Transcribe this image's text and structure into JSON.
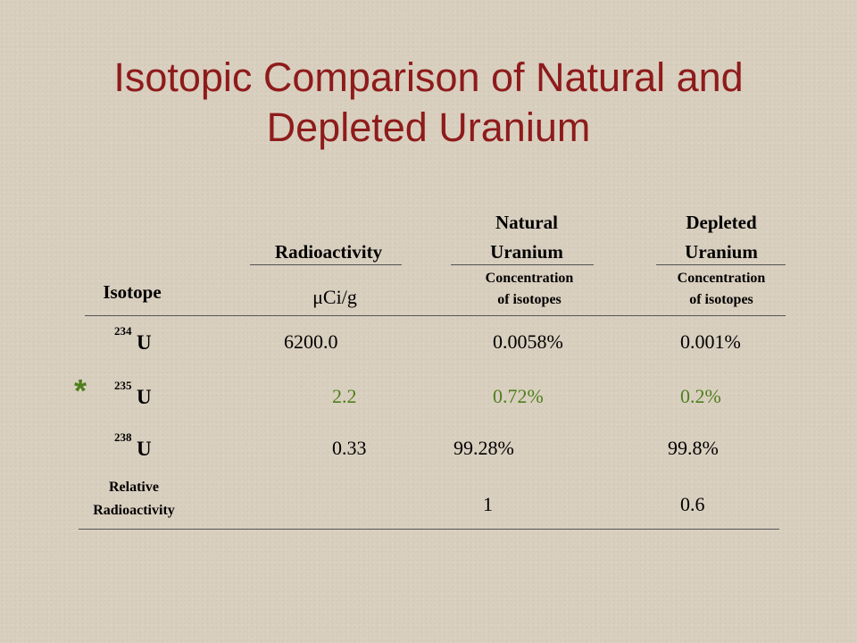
{
  "title": [
    "Isotopic Comparison of Natural and",
    "Depleted Uranium"
  ],
  "table": {
    "headers": {
      "isotope": "Isotope",
      "radioactivity": "Radioactivity",
      "unit": "μCi/g",
      "natural": [
        "Natural",
        "Uranium"
      ],
      "depleted": [
        "Depleted",
        "Uranium"
      ],
      "natural_sub": [
        "Concentration",
        "of isotopes"
      ],
      "depleted_sub": [
        "Concentration",
        "of isotopes"
      ]
    },
    "rows": [
      {
        "mass": "234",
        "symbol": "U",
        "activity": "6200.0",
        "natural": "0.0058%",
        "depleted": "0.001%"
      },
      {
        "marker": "*",
        "mass": "235",
        "symbol": "U",
        "activity": "2.2",
        "natural": "0.72%",
        "depleted": "0.2%"
      },
      {
        "mass": "238",
        "symbol": "U",
        "activity": "0.33",
        "natural": "99.28%",
        "depleted": "99.8%"
      }
    ],
    "relative": {
      "label": [
        "Relative",
        "Radioactivity"
      ],
      "natural": "1",
      "depleted": "0.6"
    }
  }
}
